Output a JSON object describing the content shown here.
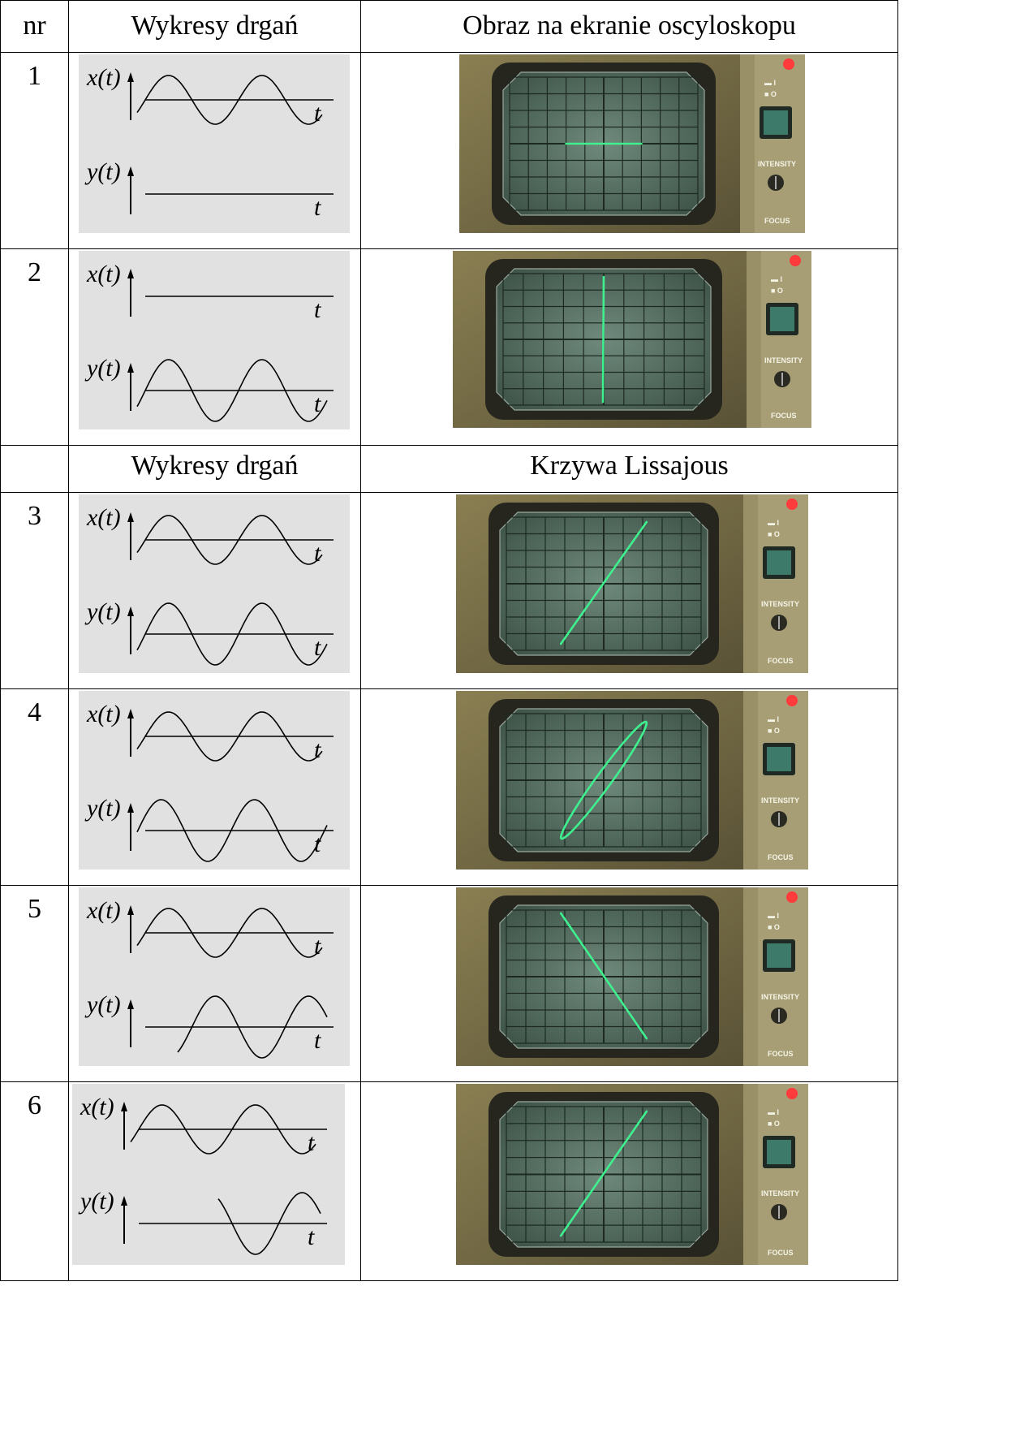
{
  "header": {
    "col_nr": "nr",
    "col_plots": "Wykresy drgań",
    "col_screen": "Obraz na ekranie oscyloskopu"
  },
  "subheader": {
    "col_plots": "Wykresy drgań",
    "col_screen": "Krzywa Lissajous"
  },
  "axis_labels": {
    "x": "x(t)",
    "y": "y(t)",
    "t": "t"
  },
  "scope_labels": {
    "intensity": "INTENSITY",
    "focus": "FOCUS"
  },
  "colors": {
    "trace": "#3ff08f",
    "screen": "#5f7a6c",
    "panel": "#e1e1e1",
    "led": "#ff3b3b",
    "button": "#3d7a6a"
  },
  "rows": [
    {
      "nr": "1",
      "x_signal": "sine",
      "y_signal": "zero",
      "screen": "horizontal line"
    },
    {
      "nr": "2",
      "x_signal": "zero",
      "y_signal": "sine",
      "screen": "vertical line"
    },
    {
      "nr": "3",
      "x_signal": "sine",
      "y_signal": "sine in phase",
      "screen": "diagonal line"
    },
    {
      "nr": "4",
      "x_signal": "sine",
      "y_signal": "sine small phase shift",
      "screen": "narrow ellipse"
    },
    {
      "nr": "5",
      "x_signal": "sine",
      "y_signal": "sine opposite phase",
      "screen": "diagonal line reversed"
    },
    {
      "nr": "6",
      "x_signal": "sine",
      "y_signal": "sine full period shift",
      "screen": "diagonal line"
    }
  ]
}
